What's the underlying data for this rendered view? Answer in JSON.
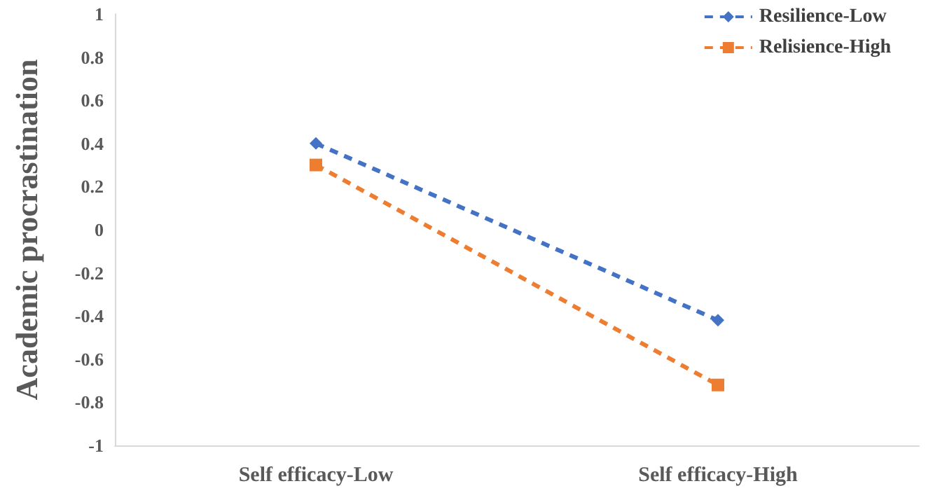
{
  "chart_data": {
    "type": "line",
    "ylabel": "Academic procrastination",
    "categories": [
      "Self efficacy-Low",
      "Self efficacy-High"
    ],
    "series": [
      {
        "name": "Resilience-Low",
        "color": "#4472c4",
        "values": [
          0.4,
          -0.42
        ],
        "marker": "diamond"
      },
      {
        "name": "Relisience-High",
        "color": "#ed7d31",
        "values": [
          0.3,
          -0.72
        ],
        "marker": "square"
      }
    ],
    "ylim": [
      -1,
      1
    ],
    "yticks": [
      -1,
      -0.8,
      -0.6,
      -0.4,
      -0.2,
      0,
      0.2,
      0.4,
      0.6,
      0.8,
      1
    ],
    "grid": false,
    "legend": "top right",
    "line_style": "dashed"
  }
}
